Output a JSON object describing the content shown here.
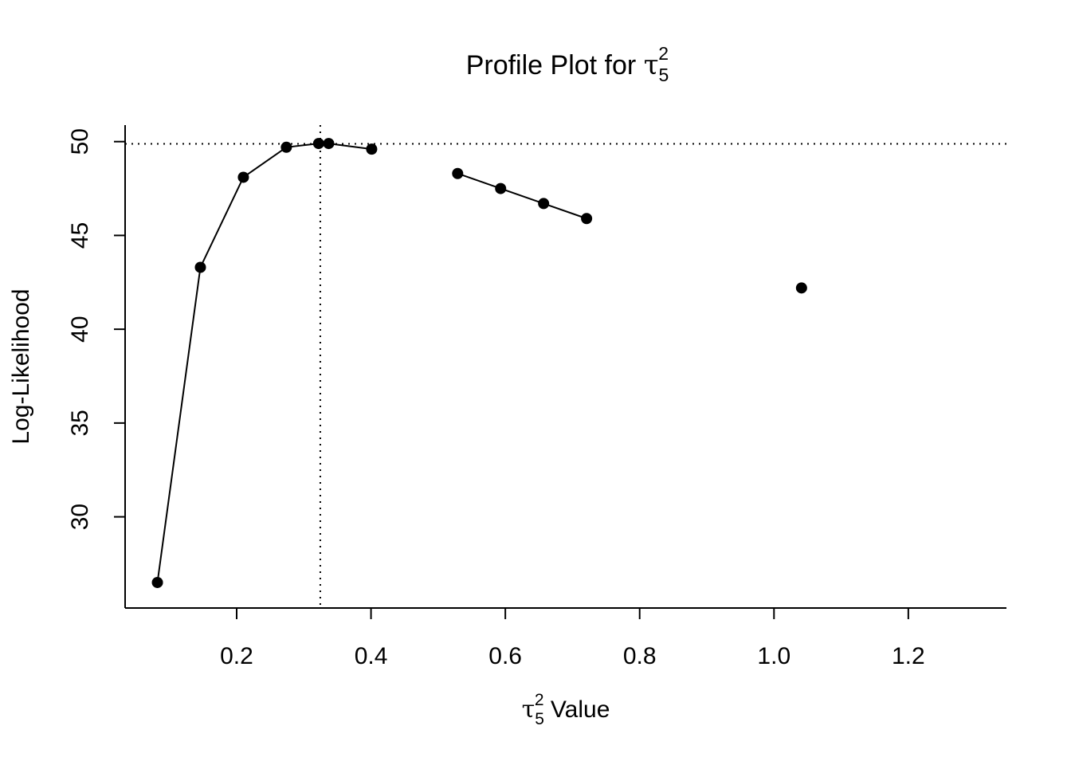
{
  "chart_data": {
    "type": "line",
    "title": {
      "prefix": "Profile Plot for ",
      "symbol": "τ",
      "sub": "5",
      "sup": "2"
    },
    "xlabel": {
      "symbol": "τ",
      "sub": "5",
      "sup": "2",
      "suffix": " Value"
    },
    "ylabel": "Log-Likelihood",
    "xlim": [
      0.0339,
      1.3461
    ],
    "ylim": [
      25.14,
      50.88
    ],
    "x_ticks": [
      {
        "value": 0.2,
        "label": "0.2"
      },
      {
        "value": 0.4,
        "label": "0.4"
      },
      {
        "value": 0.6,
        "label": "0.6"
      },
      {
        "value": 0.8,
        "label": "0.8"
      },
      {
        "value": 1.0,
        "label": "1.0"
      },
      {
        "value": 1.2,
        "label": "1.2"
      }
    ],
    "y_ticks": [
      {
        "value": 30,
        "label": "30"
      },
      {
        "value": 35,
        "label": "35"
      },
      {
        "value": 40,
        "label": "40"
      },
      {
        "value": 45,
        "label": "45"
      },
      {
        "value": 50,
        "label": "50"
      }
    ],
    "segments": [
      {
        "name": "segment-1",
        "x": [
          0.082,
          0.146,
          0.21,
          0.274,
          0.322,
          0.337,
          0.401
        ],
        "y": [
          26.5,
          43.3,
          48.1,
          49.7,
          49.9,
          49.9,
          49.6
        ]
      },
      {
        "name": "segment-2",
        "x": [
          0.529,
          0.593,
          0.657,
          0.721
        ],
        "y": [
          48.3,
          47.5,
          46.7,
          45.9
        ]
      },
      {
        "name": "segment-3",
        "x": [
          1.041
        ],
        "y": [
          42.2
        ]
      }
    ],
    "reference_lines": {
      "hline_y": 49.88,
      "vline_x": 0.3245,
      "style": "dotted"
    },
    "colors": {
      "points": "#000000",
      "lines": "#000000",
      "axis": "#000000",
      "background": "#ffffff"
    }
  }
}
